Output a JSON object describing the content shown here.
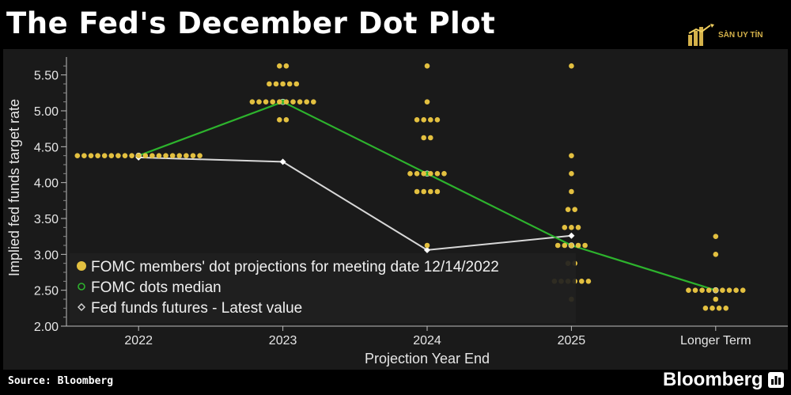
{
  "title": "The Fed's December Dot Plot",
  "watermark": "SÀN UY TÍN",
  "source": "Source: Bloomberg",
  "brand": "Bloomberg",
  "colors": {
    "dots": "#e3c040",
    "median": "#2db32d",
    "futures": "#d8d8d8",
    "background": "#1a1a1a"
  },
  "chart_data": {
    "type": "scatter",
    "xlabel": "Projection Year End",
    "ylabel": "Implied fed funds target rate",
    "categories": [
      "2022",
      "2023",
      "2024",
      "2025",
      "Longer Term"
    ],
    "ylim": [
      2.0,
      5.75
    ],
    "yticks": [
      "2.00",
      "2.50",
      "3.00",
      "3.50",
      "4.00",
      "4.50",
      "5.00",
      "5.50"
    ],
    "legend_position": "lower-left",
    "series": [
      {
        "name": "FOMC members' dot projections for meeting date 12/14/2022",
        "style": "dots",
        "points": [
          {
            "x": "2022",
            "y": 4.375,
            "count": 19
          },
          {
            "x": "2023",
            "y": 5.625,
            "count": 2
          },
          {
            "x": "2023",
            "y": 5.375,
            "count": 5
          },
          {
            "x": "2023",
            "y": 5.125,
            "count": 10
          },
          {
            "x": "2023",
            "y": 4.875,
            "count": 2
          },
          {
            "x": "2024",
            "y": 5.625,
            "count": 1
          },
          {
            "x": "2024",
            "y": 5.125,
            "count": 1
          },
          {
            "x": "2024",
            "y": 4.875,
            "count": 4
          },
          {
            "x": "2024",
            "y": 4.625,
            "count": 2
          },
          {
            "x": "2024",
            "y": 4.125,
            "count": 6
          },
          {
            "x": "2024",
            "y": 3.875,
            "count": 4
          },
          {
            "x": "2024",
            "y": 3.125,
            "count": 1
          },
          {
            "x": "2025",
            "y": 5.625,
            "count": 1
          },
          {
            "x": "2025",
            "y": 4.375,
            "count": 1
          },
          {
            "x": "2025",
            "y": 4.125,
            "count": 1
          },
          {
            "x": "2025",
            "y": 3.875,
            "count": 1
          },
          {
            "x": "2025",
            "y": 3.625,
            "count": 2
          },
          {
            "x": "2025",
            "y": 3.375,
            "count": 3
          },
          {
            "x": "2025",
            "y": 3.125,
            "count": 5
          },
          {
            "x": "2025",
            "y": 2.875,
            "count": 2
          },
          {
            "x": "2025",
            "y": 2.625,
            "count": 6
          },
          {
            "x": "2025",
            "y": 2.375,
            "count": 1
          },
          {
            "x": "Longer Term",
            "y": 3.25,
            "count": 1
          },
          {
            "x": "Longer Term",
            "y": 3.0,
            "count": 1
          },
          {
            "x": "Longer Term",
            "y": 2.5,
            "count": 9
          },
          {
            "x": "Longer Term",
            "y": 2.375,
            "count": 1
          },
          {
            "x": "Longer Term",
            "y": 2.25,
            "count": 4
          }
        ]
      },
      {
        "name": "FOMC dots median",
        "style": "line",
        "x": [
          "2022",
          "2023",
          "2024",
          "2025",
          "Longer Term"
        ],
        "values": [
          4.375,
          5.125,
          4.125,
          3.125,
          2.5
        ]
      },
      {
        "name": "Fed funds futures - Latest value",
        "style": "line",
        "x": [
          "2022",
          "2023",
          "2024",
          "2025"
        ],
        "values": [
          4.35,
          4.29,
          3.06,
          3.26
        ]
      }
    ]
  }
}
